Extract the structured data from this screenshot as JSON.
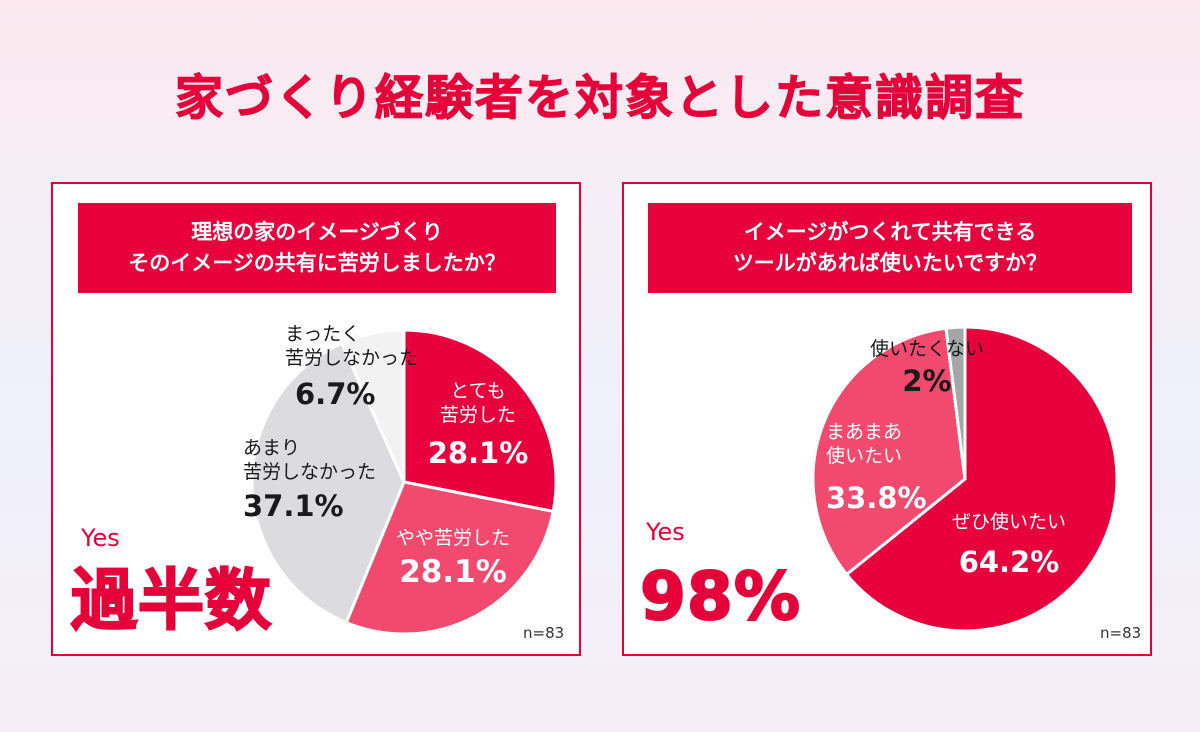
{
  "title": "家づくり経験者を対象とした意識調査",
  "panels": [
    {
      "question_line1": "理想の家のイメージづくり",
      "question_line2": "そのイメージの共有に苦労しましたか？",
      "yes_label": "Yes",
      "highlight": "過半数",
      "n": "n=83",
      "labels": {
        "s1_t1": "とても",
        "s1_t2": "苦労した",
        "s1_p": "28.1%",
        "s2_t1": "やや苦労した",
        "s2_p": "28.1%",
        "s3_t1": "あまり",
        "s3_t2": "苦労しなかった",
        "s3_p": "37.1%",
        "s4_t1": "まったく",
        "s4_t2": "苦労しなかった",
        "s4_p": "6.7%"
      }
    },
    {
      "question_line1": "イメージがつくれて共有できる",
      "question_line2": "ツールがあれば使いたいですか？",
      "yes_label": "Yes",
      "highlight": "98%",
      "n": "n=83",
      "labels": {
        "s1_t1": "ぜひ使いたい",
        "s1_p": "64.2%",
        "s2_t1": "まあまあ",
        "s2_t2": "使いたい",
        "s2_p": "33.8%",
        "s3_t1": "使いたくない",
        "s3_p": "2%"
      }
    }
  ],
  "chart_data": [
    {
      "type": "pie",
      "title": "理想の家のイメージづくり そのイメージの共有に苦労しましたか？",
      "categories": [
        "とても苦労した",
        "やや苦労した",
        "あまり苦労しなかった",
        "まったく苦労しなかった"
      ],
      "values": [
        28.1,
        28.1,
        37.1,
        6.7
      ],
      "colors": [
        "#e8003d",
        "#f24a6e",
        "#dcdcde",
        "#f2f2f3"
      ]
    },
    {
      "type": "pie",
      "title": "イメージがつくれて共有できる ツールがあれば使いたいですか？",
      "categories": [
        "ぜひ使いたい",
        "まあまあ使いたい",
        "使いたくない"
      ],
      "values": [
        64.2,
        33.8,
        2
      ],
      "colors": [
        "#e8003d",
        "#f24a6e",
        "#a6a6a6"
      ]
    }
  ]
}
